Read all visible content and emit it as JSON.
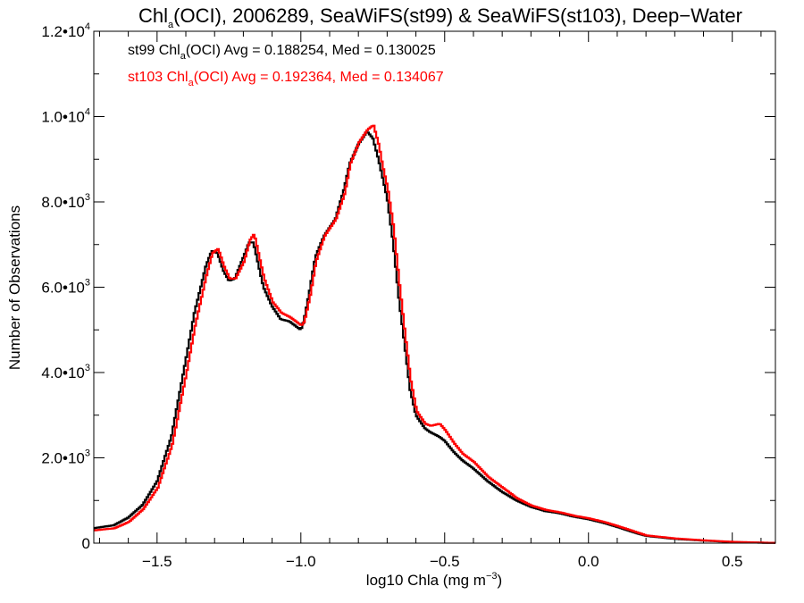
{
  "chart_data": {
    "type": "line",
    "title": {
      "prefix": "Chl",
      "prefix_sub": "a",
      "rest": "(OCI), 2006289, SeaWiFS(st99) & SeaWiFS(st103), Deep−Water"
    },
    "xlabel": {
      "main": "log10 Chla (mg m",
      "sup": "−3",
      "tail": ")"
    },
    "ylabel": "Number of Observations",
    "xlim": [
      -1.72,
      0.65
    ],
    "ylim": [
      0,
      12000
    ],
    "x_ticks": [
      {
        "value": -1.5,
        "label": "−1.5"
      },
      {
        "value": -1.0,
        "label": "−1.0"
      },
      {
        "value": -0.5,
        "label": "−0.5"
      },
      {
        "value": 0.0,
        "label": "0.0"
      },
      {
        "value": 0.5,
        "label": "0.5"
      }
    ],
    "y_ticks": [
      {
        "value": 0,
        "mant": "0",
        "exp": ""
      },
      {
        "value": 2000,
        "mant": "2.0•10",
        "exp": "3"
      },
      {
        "value": 4000,
        "mant": "4.0•10",
        "exp": "3"
      },
      {
        "value": 6000,
        "mant": "6.0•10",
        "exp": "3"
      },
      {
        "value": 8000,
        "mant": "8.0•10",
        "exp": "3"
      },
      {
        "value": 10000,
        "mant": "1.0•10",
        "exp": "4"
      },
      {
        "value": 12000,
        "mant": "1.2•10",
        "exp": "4"
      }
    ],
    "annotations": [
      {
        "pre": "st99 Chl",
        "sub": "a",
        "post": "(OCI) Avg = 0.188254, Med = 0.130025",
        "color": "#000000"
      },
      {
        "pre": "st103 Chl",
        "sub": "a",
        "post": "(OCI) Avg = 0.192364, Med = 0.134067",
        "color": "#ff0000"
      }
    ],
    "series": [
      {
        "color": "#000000",
        "x": [
          -1.72,
          -1.65,
          -1.6,
          -1.55,
          -1.5,
          -1.45,
          -1.4,
          -1.37,
          -1.33,
          -1.31,
          -1.29,
          -1.27,
          -1.25,
          -1.23,
          -1.2,
          -1.18,
          -1.165,
          -1.15,
          -1.13,
          -1.1,
          -1.07,
          -1.04,
          -1.0,
          -0.99,
          -0.97,
          -0.95,
          -0.92,
          -0.88,
          -0.85,
          -0.83,
          -0.8,
          -0.77,
          -0.75,
          -0.73,
          -0.72,
          -0.7,
          -0.68,
          -0.66,
          -0.64,
          -0.62,
          -0.6,
          -0.57,
          -0.55,
          -0.52,
          -0.5,
          -0.47,
          -0.44,
          -0.4,
          -0.35,
          -0.3,
          -0.25,
          -0.2,
          -0.15,
          -0.1,
          -0.05,
          0.0,
          0.05,
          0.1,
          0.15,
          0.2,
          0.3,
          0.4,
          0.5,
          0.6,
          0.65
        ],
        "values": [
          350,
          420,
          600,
          900,
          1450,
          2500,
          4300,
          5400,
          6500,
          6850,
          6800,
          6400,
          6150,
          6200,
          6700,
          7050,
          7050,
          6600,
          6000,
          5550,
          5250,
          5200,
          5000,
          5200,
          5900,
          6700,
          7200,
          7600,
          8300,
          8900,
          9350,
          9650,
          9500,
          9000,
          8700,
          8100,
          7100,
          5800,
          4700,
          3600,
          3000,
          2700,
          2600,
          2500,
          2400,
          2150,
          1950,
          1750,
          1450,
          1200,
          1000,
          850,
          750,
          700,
          620,
          560,
          480,
          380,
          270,
          170,
          100,
          60,
          25,
          10,
          5
        ]
      },
      {
        "color": "#ff0000",
        "x": [
          -1.72,
          -1.65,
          -1.6,
          -1.55,
          -1.5,
          -1.45,
          -1.4,
          -1.37,
          -1.33,
          -1.31,
          -1.29,
          -1.27,
          -1.25,
          -1.23,
          -1.2,
          -1.18,
          -1.165,
          -1.15,
          -1.13,
          -1.1,
          -1.07,
          -1.04,
          -1.0,
          -0.99,
          -0.97,
          -0.95,
          -0.92,
          -0.88,
          -0.85,
          -0.83,
          -0.8,
          -0.77,
          -0.75,
          -0.73,
          -0.72,
          -0.7,
          -0.68,
          -0.66,
          -0.64,
          -0.62,
          -0.6,
          -0.57,
          -0.55,
          -0.52,
          -0.5,
          -0.47,
          -0.44,
          -0.4,
          -0.35,
          -0.3,
          -0.25,
          -0.2,
          -0.15,
          -0.1,
          -0.05,
          0.0,
          0.05,
          0.1,
          0.15,
          0.2,
          0.3,
          0.4,
          0.5,
          0.6,
          0.65
        ],
        "values": [
          300,
          350,
          500,
          800,
          1300,
          2300,
          4000,
          5100,
          6300,
          6800,
          6900,
          6500,
          6200,
          6200,
          6600,
          7100,
          7250,
          6800,
          6200,
          5650,
          5400,
          5300,
          5100,
          5200,
          5800,
          6600,
          7200,
          7600,
          8200,
          8900,
          9400,
          9700,
          9800,
          9300,
          8900,
          8300,
          7400,
          6100,
          4900,
          3800,
          3100,
          2800,
          2750,
          2800,
          2650,
          2350,
          2100,
          1900,
          1550,
          1300,
          1050,
          880,
          780,
          720,
          640,
          580,
          500,
          400,
          290,
          180,
          110,
          65,
          30,
          12,
          6
        ]
      }
    ]
  }
}
